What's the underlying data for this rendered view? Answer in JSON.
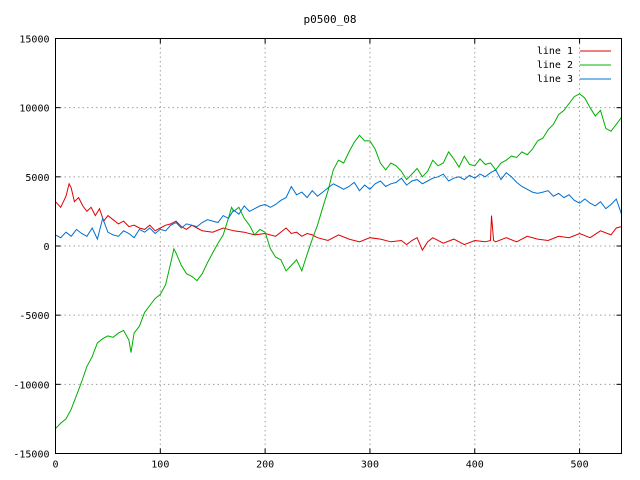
{
  "chart_data": {
    "type": "line",
    "title": "p0500_08",
    "xlabel": "",
    "ylabel": "",
    "xlim": [
      0,
      540
    ],
    "ylim": [
      -15000,
      15000
    ],
    "xticks": [
      0,
      100,
      200,
      300,
      400,
      500
    ],
    "yticks": [
      -15000,
      -10000,
      -5000,
      0,
      5000,
      10000,
      15000
    ],
    "grid": true,
    "legend_position": "top-right",
    "series": [
      {
        "name": "line 1",
        "color": "#e00000",
        "x": [
          0,
          5,
          10,
          13,
          15,
          18,
          22,
          26,
          30,
          34,
          38,
          42,
          46,
          50,
          55,
          60,
          65,
          70,
          75,
          80,
          85,
          90,
          95,
          100,
          105,
          110,
          115,
          120,
          125,
          130,
          135,
          140,
          150,
          160,
          170,
          180,
          190,
          200,
          210,
          220,
          225,
          230,
          235,
          240,
          245,
          250,
          260,
          270,
          280,
          290,
          300,
          310,
          320,
          330,
          335,
          340,
          345,
          350,
          355,
          360,
          370,
          380,
          390,
          400,
          410,
          415,
          416,
          418,
          420,
          430,
          440,
          450,
          460,
          470,
          480,
          490,
          500,
          510,
          520,
          530,
          535,
          540
        ],
        "y": [
          3200,
          2800,
          3600,
          4500,
          4200,
          3200,
          3500,
          2900,
          2500,
          2800,
          2200,
          2700,
          1800,
          2200,
          1900,
          1600,
          1800,
          1400,
          1500,
          1300,
          1200,
          1500,
          1100,
          1300,
          1500,
          1600,
          1800,
          1400,
          1200,
          1500,
          1300,
          1100,
          1000,
          1300,
          1100,
          1000,
          800,
          900,
          700,
          1300,
          900,
          1000,
          700,
          900,
          800,
          600,
          400,
          800,
          500,
          300,
          600,
          500,
          300,
          400,
          100,
          400,
          600,
          -300,
          300,
          600,
          200,
          500,
          100,
          400,
          300,
          400,
          2200,
          400,
          300,
          600,
          300,
          700,
          500,
          400,
          700,
          600,
          900,
          600,
          1100,
          800,
          1300,
          1400
        ]
      },
      {
        "name": "line 2",
        "color": "#00b000",
        "x": [
          0,
          5,
          10,
          15,
          20,
          25,
          30,
          35,
          40,
          45,
          50,
          55,
          60,
          65,
          70,
          72,
          75,
          80,
          85,
          90,
          95,
          100,
          105,
          110,
          113,
          115,
          120,
          125,
          130,
          135,
          140,
          145,
          150,
          155,
          160,
          165,
          168,
          170,
          175,
          180,
          185,
          190,
          195,
          200,
          205,
          210,
          215,
          220,
          225,
          230,
          235,
          240,
          245,
          250,
          255,
          260,
          265,
          270,
          275,
          280,
          285,
          290,
          295,
          300,
          305,
          310,
          315,
          320,
          325,
          330,
          335,
          340,
          345,
          350,
          355,
          360,
          365,
          370,
          375,
          380,
          385,
          390,
          395,
          400,
          405,
          410,
          415,
          420,
          425,
          430,
          435,
          440,
          445,
          450,
          455,
          460,
          465,
          470,
          475,
          480,
          485,
          490,
          495,
          500,
          505,
          510,
          515,
          520,
          525,
          530,
          535,
          540
        ],
        "y": [
          -13200,
          -12800,
          -12500,
          -11800,
          -10800,
          -9800,
          -8700,
          -8000,
          -7000,
          -6700,
          -6500,
          -6600,
          -6300,
          -6100,
          -6800,
          -7700,
          -6300,
          -5800,
          -4800,
          -4300,
          -3800,
          -3500,
          -2800,
          -1200,
          -200,
          -500,
          -1400,
          -2000,
          -2200,
          -2500,
          -2000,
          -1200,
          -500,
          200,
          800,
          2000,
          2800,
          2500,
          2800,
          2000,
          1500,
          800,
          1200,
          1000,
          -200,
          -800,
          -1000,
          -1800,
          -1400,
          -1000,
          -1800,
          -600,
          500,
          1500,
          2800,
          4000,
          5500,
          6200,
          6000,
          6800,
          7500,
          8000,
          7600,
          7600,
          7000,
          6000,
          5500,
          6000,
          5800,
          5400,
          4800,
          5200,
          5600,
          5000,
          5400,
          6200,
          5800,
          6000,
          6800,
          6300,
          5700,
          6500,
          5900,
          5800,
          6300,
          5900,
          6000,
          5500,
          6000,
          6200,
          6500,
          6400,
          6800,
          6600,
          7000,
          7600,
          7800,
          8400,
          8800,
          9500,
          9800,
          10300,
          10800,
          11000,
          10700,
          10000,
          9400,
          9800,
          8500,
          8300,
          8800,
          9300
        ]
      },
      {
        "name": "line 3",
        "color": "#0070d0",
        "x": [
          0,
          5,
          10,
          15,
          20,
          25,
          30,
          35,
          40,
          45,
          50,
          55,
          60,
          65,
          70,
          75,
          80,
          85,
          90,
          95,
          100,
          105,
          110,
          115,
          120,
          125,
          130,
          135,
          140,
          145,
          150,
          155,
          160,
          165,
          170,
          175,
          180,
          185,
          190,
          195,
          200,
          205,
          210,
          215,
          220,
          225,
          230,
          235,
          240,
          245,
          250,
          255,
          260,
          265,
          270,
          275,
          280,
          285,
          290,
          295,
          300,
          305,
          310,
          315,
          320,
          325,
          330,
          335,
          340,
          345,
          350,
          355,
          360,
          365,
          370,
          375,
          380,
          385,
          390,
          395,
          400,
          405,
          410,
          415,
          420,
          425,
          430,
          435,
          440,
          445,
          450,
          455,
          460,
          465,
          470,
          475,
          480,
          485,
          490,
          495,
          500,
          505,
          510,
          515,
          520,
          525,
          530,
          535,
          540
        ],
        "y": [
          800,
          600,
          1000,
          700,
          1200,
          900,
          700,
          1300,
          500,
          2000,
          1000,
          800,
          700,
          1100,
          900,
          600,
          1200,
          1000,
          1300,
          900,
          1200,
          1100,
          1500,
          1700,
          1300,
          1600,
          1500,
          1400,
          1700,
          1900,
          1800,
          1700,
          2200,
          2000,
          2600,
          2300,
          2900,
          2500,
          2700,
          2900,
          3000,
          2800,
          3000,
          3300,
          3500,
          4300,
          3700,
          3900,
          3500,
          4000,
          3600,
          3900,
          4200,
          4500,
          4300,
          4100,
          4300,
          4600,
          4000,
          4400,
          4100,
          4500,
          4700,
          4300,
          4500,
          4600,
          4900,
          4400,
          4700,
          4800,
          4500,
          4700,
          4900,
          5000,
          5200,
          4700,
          4900,
          5000,
          4800,
          5100,
          4900,
          5200,
          5000,
          5300,
          5500,
          4800,
          5300,
          5000,
          4600,
          4300,
          4100,
          3900,
          3800,
          3900,
          4000,
          3600,
          3800,
          3500,
          3700,
          3300,
          3100,
          3400,
          3100,
          2900,
          3200,
          2700,
          3000,
          3400,
          2300
        ]
      }
    ]
  }
}
